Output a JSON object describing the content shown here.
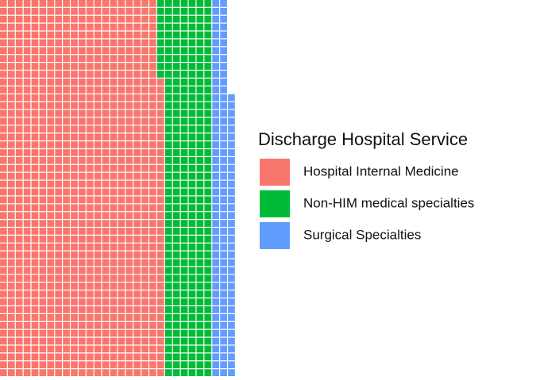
{
  "chart_data": {
    "type": "waffle",
    "legend_title": "Discharge Hospital Service",
    "categories": [
      "Hospital Internal Medicine",
      "Non-HIM medical specialties",
      "Surgical Specialties"
    ],
    "values": [
      998,
      298,
      132
    ],
    "colors": [
      "#F8766D",
      "#00BA38",
      "#619CFF"
    ],
    "rows": 48,
    "fill_order": "column-bottom-up"
  }
}
